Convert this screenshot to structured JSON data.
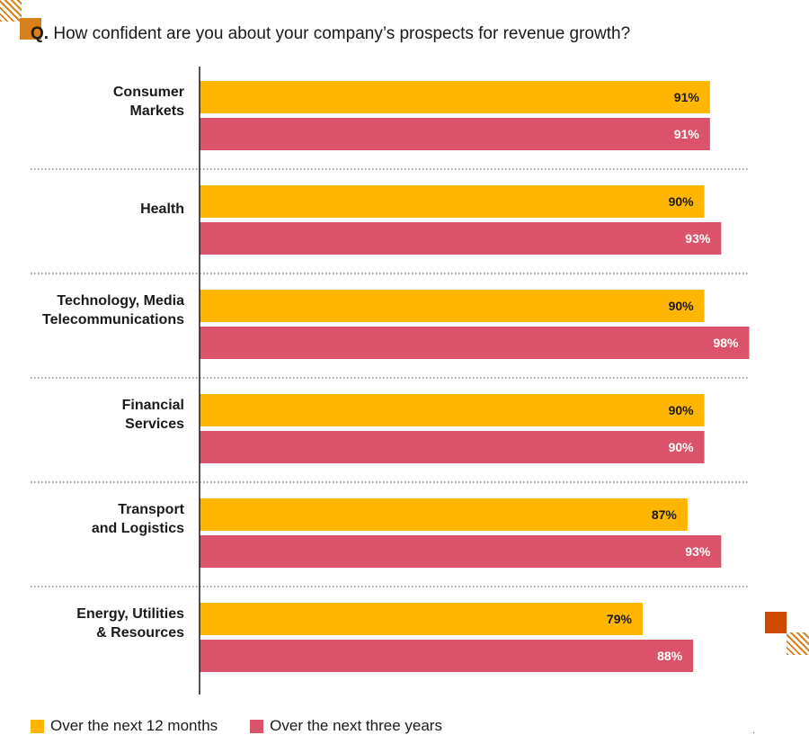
{
  "title": {
    "q_label": "Q.",
    "question": "How confident are you about your company’s prospects for revenue growth?"
  },
  "colors": {
    "series_12m": "#FFB600",
    "series_3y": "#DB536A",
    "accent": "#D04A02",
    "hatch": "#D9801E"
  },
  "legend": {
    "items": [
      {
        "label": "Over the next 12 months"
      },
      {
        "label": "Over the next three years"
      }
    ]
  },
  "footer_mark": ".",
  "chart_data": {
    "type": "bar",
    "orientation": "horizontal",
    "categories": [
      [
        "Consumer",
        "Markets"
      ],
      [
        "Health"
      ],
      [
        "Technology, Media",
        "Telecommunications"
      ],
      [
        "Financial",
        "Services"
      ],
      [
        "Transport",
        "and Logistics"
      ],
      [
        "Energy, Utilities",
        "& Resources"
      ]
    ],
    "series": [
      {
        "name": "Over the next 12 months",
        "values": [
          91,
          90,
          90,
          90,
          87,
          79
        ],
        "color": "#FFB600"
      },
      {
        "name": "Over the next three years",
        "values": [
          91,
          93,
          98,
          90,
          93,
          88
        ],
        "color": "#DB536A"
      }
    ],
    "value_suffix": "%",
    "xlim": [
      0,
      100
    ],
    "grid": false,
    "group_separators": "dotted",
    "legend_position": "bottom-left"
  }
}
